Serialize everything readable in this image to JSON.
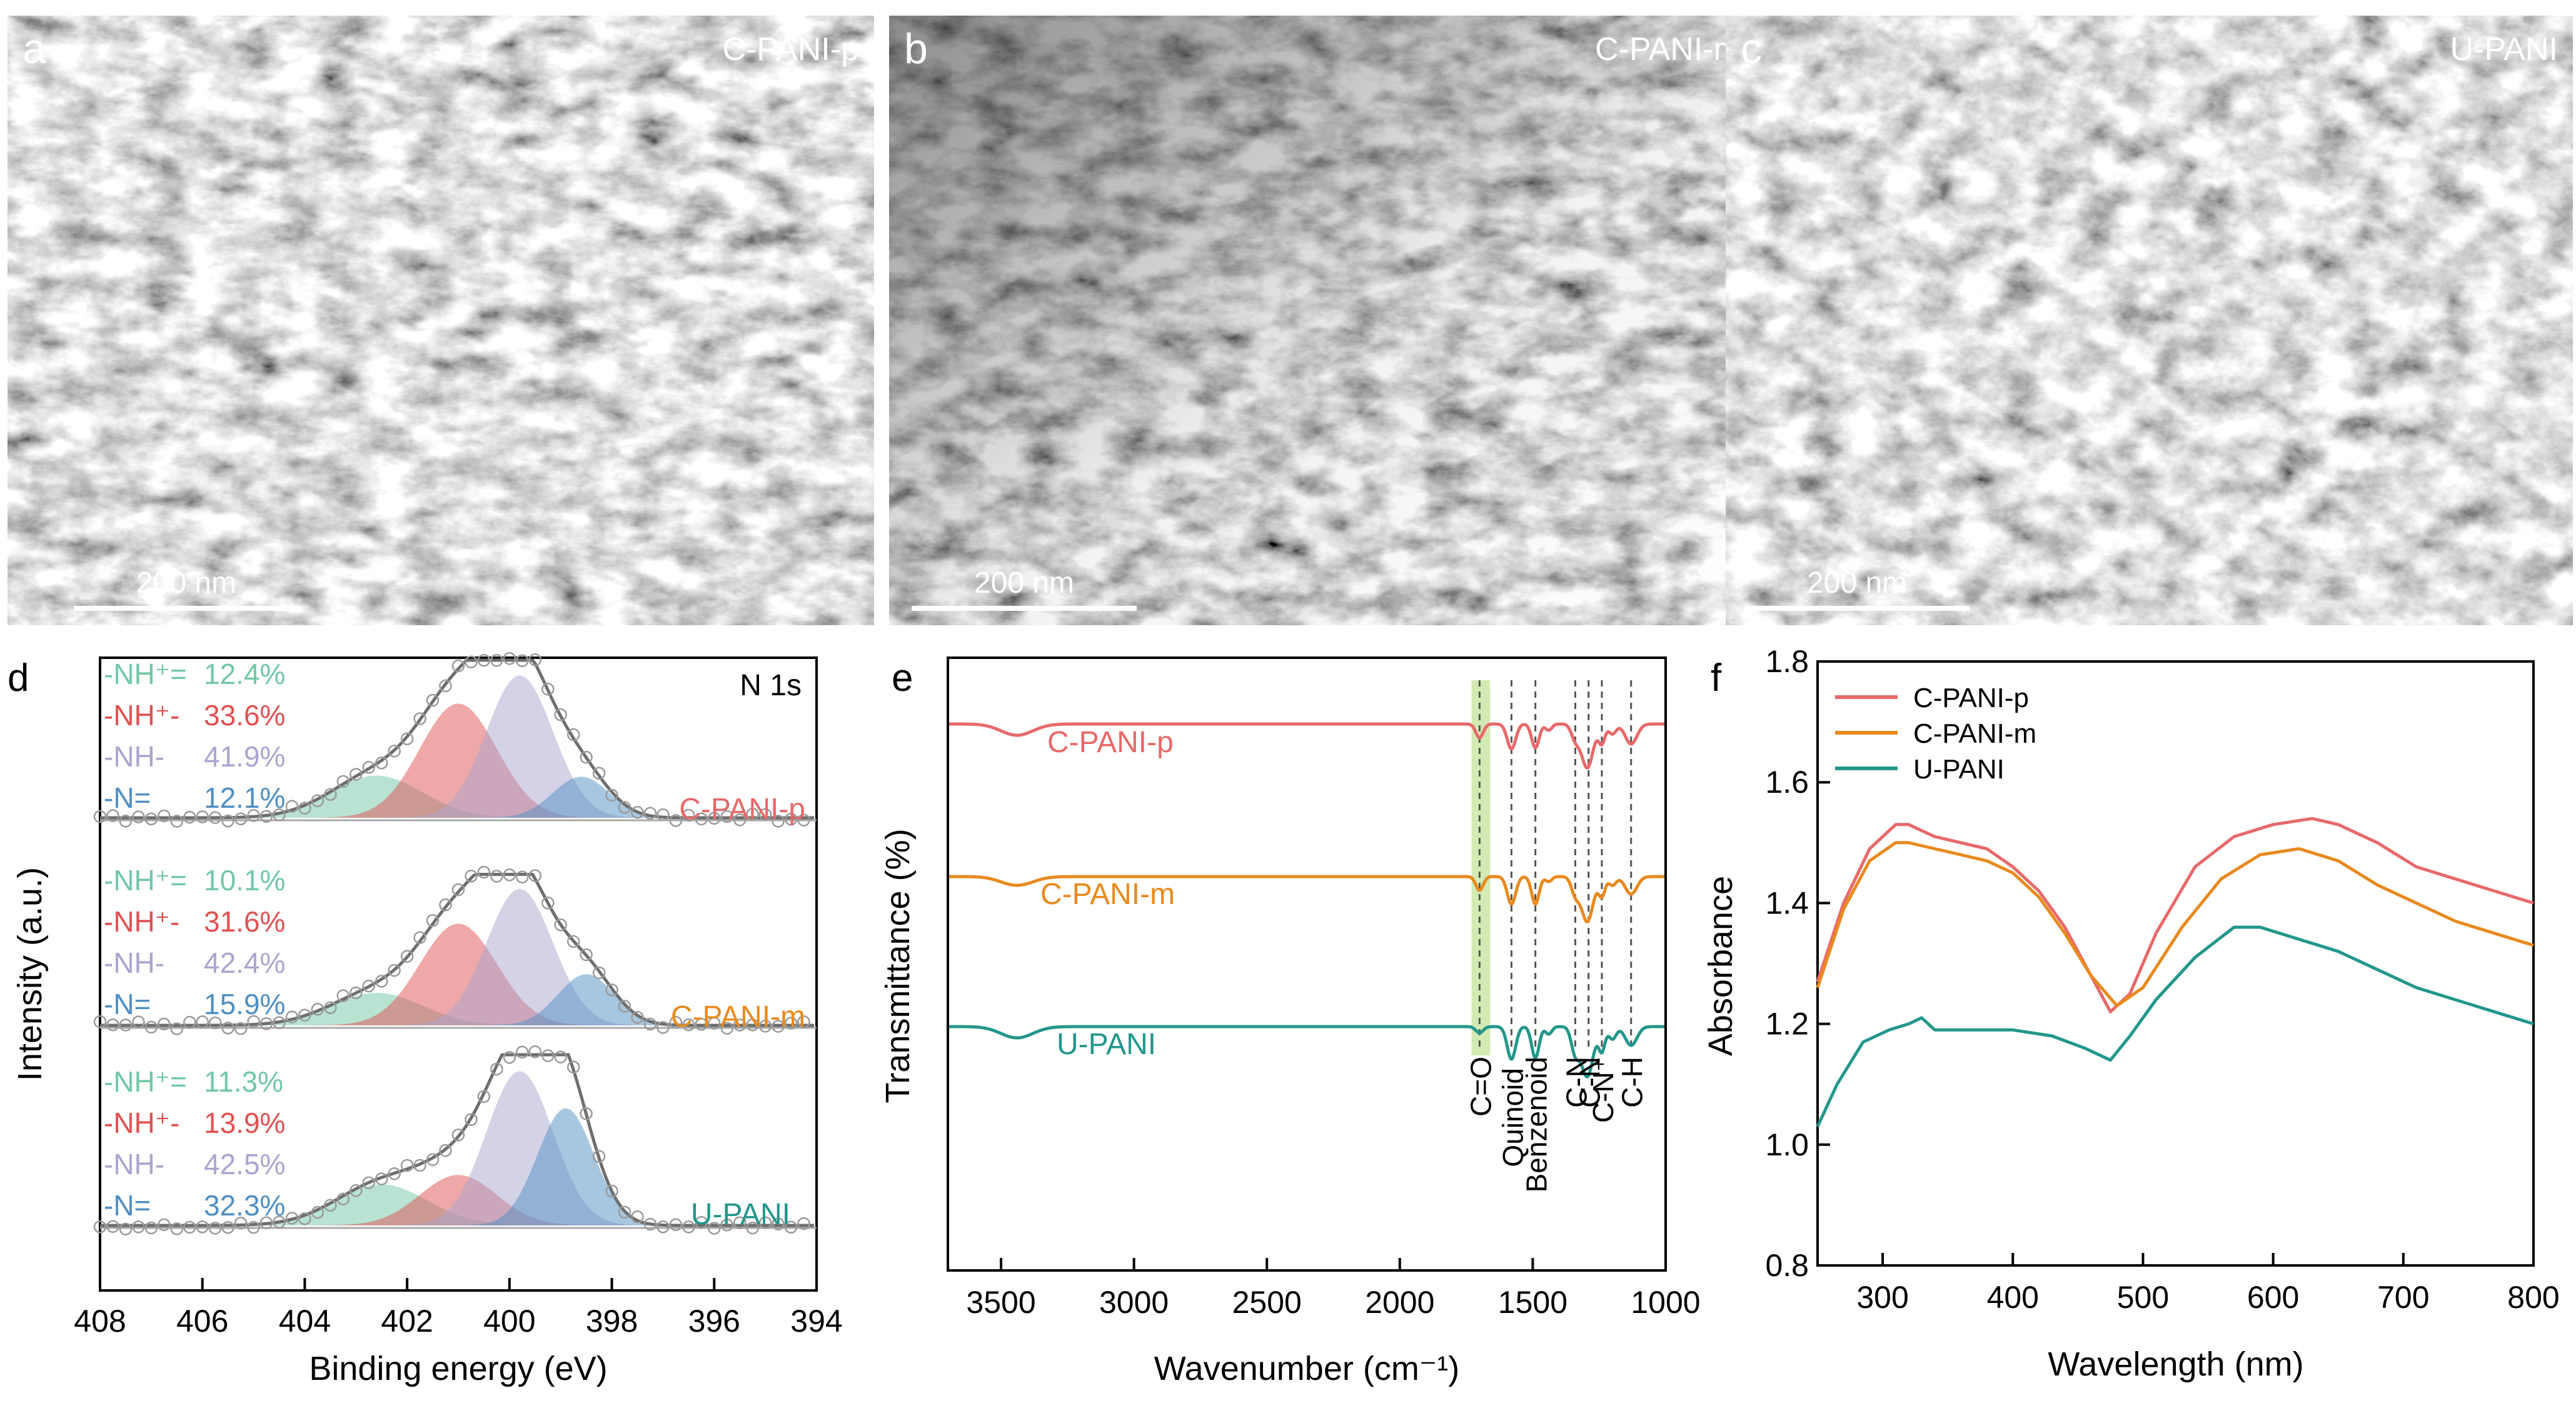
{
  "panels_sem": [
    {
      "letter": "a",
      "title": "C-PANI-p",
      "scale_bar": "200 nm"
    },
    {
      "letter": "b",
      "title": "C-PANI-m",
      "scale_bar": "200 nm"
    },
    {
      "letter": "c",
      "title": "U-PANI",
      "scale_bar": "200 nm"
    }
  ],
  "colors": {
    "p": "#e8696a",
    "m": "#e88a1e",
    "u": "#23978b",
    "nhp_eq": "#72c8a6",
    "nhp_minus": "#e05151",
    "nh": "#a9a6cf",
    "n_eq": "#4f8fc3",
    "fit": "#777777"
  },
  "chart_data": [
    {
      "panel": "d",
      "type": "line",
      "title": "N 1s",
      "xlabel": "Binding energy (eV)",
      "ylabel": "Intensity (a.u.)",
      "xlim": [
        408,
        394
      ],
      "xticks": [
        "408",
        "406",
        "404",
        "402",
        "400",
        "398",
        "396",
        "394"
      ],
      "series": [
        {
          "name": "C-PANI-p",
          "components": [
            {
              "label": "-NH⁺=",
              "value": "12.4%",
              "center_eV": 402.6
            },
            {
              "label": "-NH⁺-",
              "value": "33.6%",
              "center_eV": 401.0
            },
            {
              "label": "-NH-",
              "value": "41.9%",
              "center_eV": 399.8
            },
            {
              "label": "-N=",
              "value": "12.1%",
              "center_eV": 398.6
            }
          ],
          "peak_eV": 399.8
        },
        {
          "name": "C-PANI-m",
          "components": [
            {
              "label": "-NH⁺=",
              "value": "10.1%",
              "center_eV": 402.6
            },
            {
              "label": "-NH⁺-",
              "value": "31.6%",
              "center_eV": 401.0
            },
            {
              "label": "-NH-",
              "value": "42.4%",
              "center_eV": 399.8
            },
            {
              "label": "-N=",
              "value": "15.9%",
              "center_eV": 398.5
            }
          ],
          "peak_eV": 399.8
        },
        {
          "name": "U-PANI",
          "components": [
            {
              "label": "-NH⁺=",
              "value": "11.3%",
              "center_eV": 402.5
            },
            {
              "label": "-NH⁺-",
              "value": "13.9%",
              "center_eV": 401.0
            },
            {
              "label": "-NH-",
              "value": "42.5%",
              "center_eV": 399.8
            },
            {
              "label": "-N=",
              "value": "32.3%",
              "center_eV": 398.9
            }
          ],
          "peak_eV": 399.0
        }
      ]
    },
    {
      "panel": "e",
      "type": "line",
      "xlabel": "Wavenumber (cm⁻¹)",
      "ylabel": "Transmittance (%)",
      "xlim": [
        3700,
        1000
      ],
      "xticks": [
        3500,
        3000,
        2500,
        2000,
        1500,
        1000
      ],
      "series": [
        {
          "name": "C-PANI-p"
        },
        {
          "name": "C-PANI-m"
        },
        {
          "name": "U-PANI"
        }
      ],
      "highlight_band": {
        "label": "C=O",
        "from": 1730,
        "to": 1660
      },
      "annotations": [
        {
          "label": "C=O",
          "x": 1700
        },
        {
          "label": "Quinoid",
          "x": 1580
        },
        {
          "label": "Benzenoid",
          "x": 1490
        },
        {
          "label": "C-N",
          "x": 1340
        },
        {
          "label": "C-N",
          "x": 1290
        },
        {
          "label": "C-N⁺",
          "x": 1240
        },
        {
          "label": "C-H",
          "x": 1130
        }
      ]
    },
    {
      "panel": "f",
      "type": "line",
      "xlabel": "Wavelength (nm)",
      "ylabel": "Absorbance",
      "xlim": [
        250,
        800
      ],
      "ylim": [
        0.8,
        1.8
      ],
      "xticks": [
        "300",
        "400",
        "500",
        "600",
        "700",
        "800"
      ],
      "yticks": [
        "0.8",
        "1.0",
        "1.2",
        "1.4",
        "1.6",
        "1.8"
      ],
      "legend": "top-left",
      "series": [
        {
          "name": "C-PANI-p",
          "x": [
            250,
            270,
            290,
            310,
            320,
            340,
            360,
            380,
            400,
            420,
            440,
            460,
            475,
            490,
            510,
            540,
            570,
            600,
            630,
            650,
            680,
            710,
            740,
            770,
            800
          ],
          "y": [
            1.27,
            1.4,
            1.49,
            1.53,
            1.53,
            1.51,
            1.5,
            1.49,
            1.46,
            1.42,
            1.36,
            1.28,
            1.22,
            1.25,
            1.35,
            1.46,
            1.51,
            1.53,
            1.54,
            1.53,
            1.5,
            1.46,
            1.44,
            1.42,
            1.4
          ]
        },
        {
          "name": "C-PANI-m",
          "x": [
            250,
            270,
            290,
            310,
            320,
            340,
            360,
            380,
            400,
            420,
            440,
            460,
            480,
            500,
            530,
            560,
            590,
            620,
            650,
            680,
            710,
            740,
            770,
            800
          ],
          "y": [
            1.26,
            1.39,
            1.47,
            1.5,
            1.5,
            1.49,
            1.48,
            1.47,
            1.45,
            1.41,
            1.35,
            1.28,
            1.23,
            1.26,
            1.36,
            1.44,
            1.48,
            1.49,
            1.47,
            1.43,
            1.4,
            1.37,
            1.35,
            1.33
          ]
        },
        {
          "name": "U-PANI",
          "x": [
            250,
            265,
            285,
            305,
            320,
            330,
            340,
            360,
            400,
            430,
            455,
            475,
            490,
            510,
            540,
            570,
            590,
            620,
            650,
            680,
            710,
            740,
            770,
            800
          ],
          "y": [
            1.03,
            1.1,
            1.17,
            1.19,
            1.2,
            1.21,
            1.19,
            1.19,
            1.19,
            1.18,
            1.16,
            1.14,
            1.18,
            1.24,
            1.31,
            1.36,
            1.36,
            1.34,
            1.32,
            1.29,
            1.26,
            1.24,
            1.22,
            1.2
          ]
        }
      ]
    }
  ]
}
